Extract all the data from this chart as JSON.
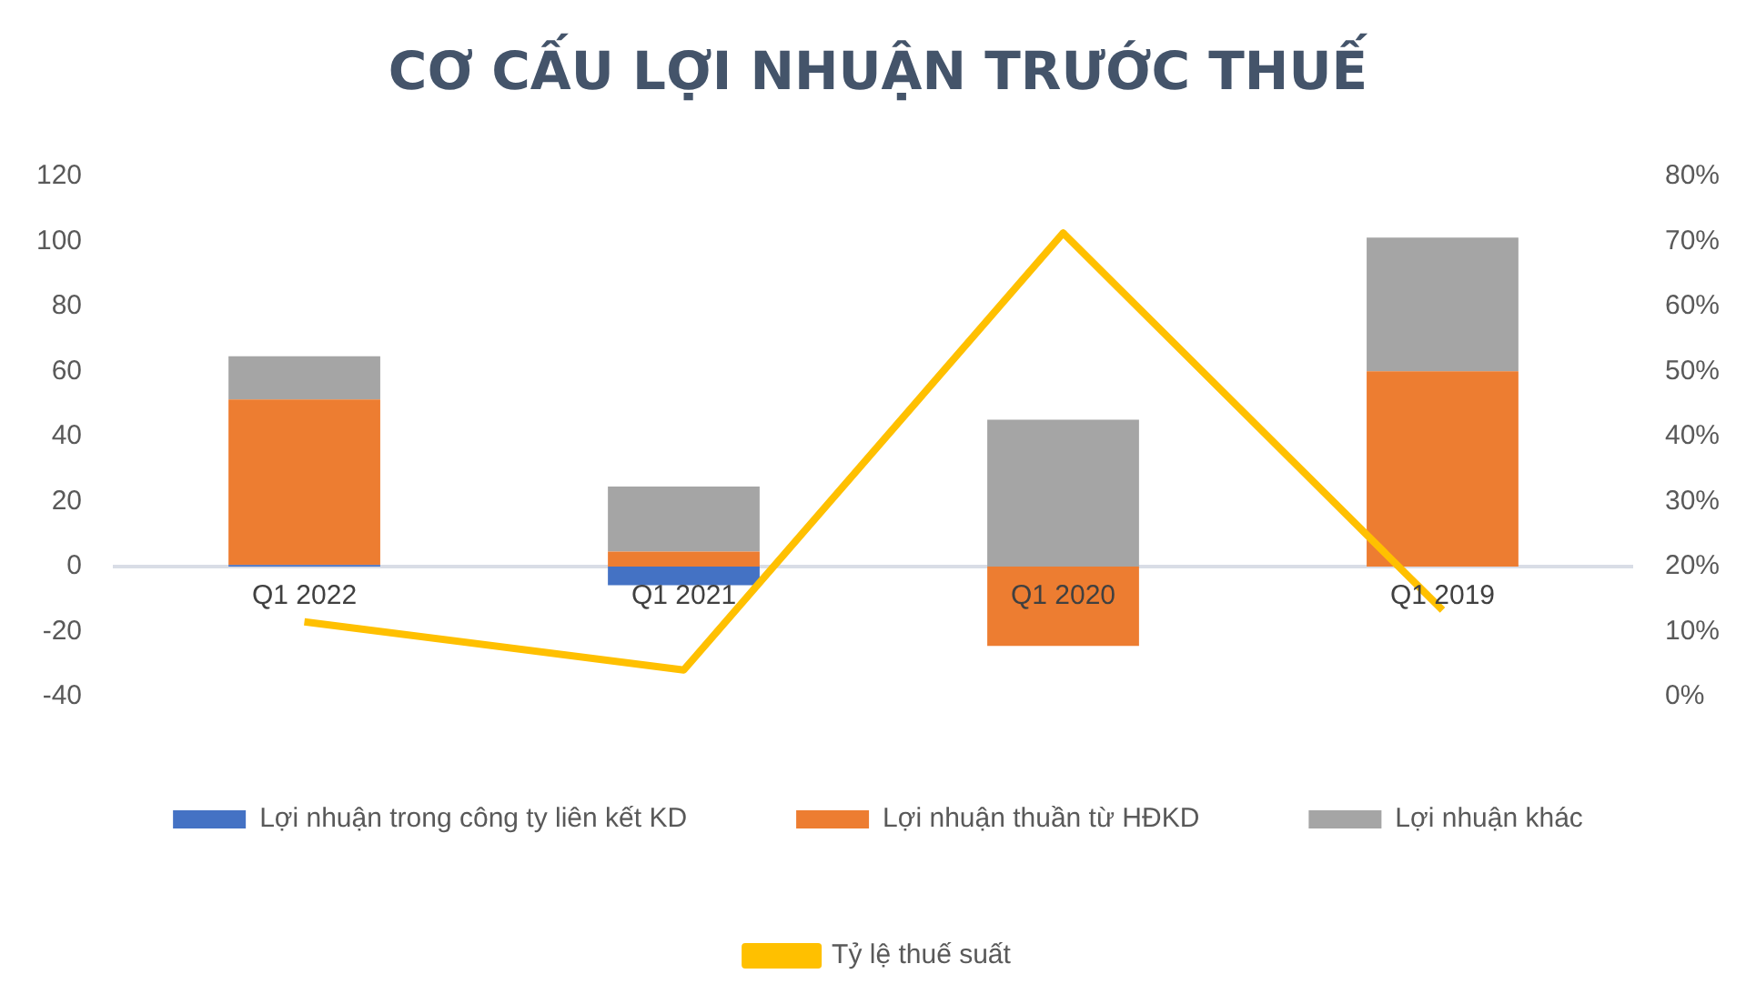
{
  "chart_data": {
    "type": "bar",
    "title": "CƠ CẤU LỢI NHUẬN TRƯỚC THUẾ",
    "stacked": true,
    "categories": [
      "Q1 2022",
      "Q1 2021",
      "Q1 2020",
      "Q1 2019"
    ],
    "series": [
      {
        "name": "Lợi nhuận trong công ty liên kết KD",
        "color": "#4472c4",
        "values": [
          0.5,
          -5.7,
          0,
          0
        ]
      },
      {
        "name": "Lợi nhuận thuần từ HĐKD",
        "color": "#ed7d31",
        "values": [
          50.9,
          4.6,
          -24.4,
          60.1
        ]
      },
      {
        "name": "Lợi nhuận khác",
        "color": "#a5a5a5",
        "values": [
          13.3,
          20,
          45.2,
          41.1
        ]
      },
      {
        "name": "Tỷ lệ thuế suất",
        "type": "line",
        "axis": "y2",
        "color": "#ffc000",
        "values": [
          11.5,
          4.1,
          71.3,
          13.3
        ]
      }
    ],
    "ylim": [
      -40,
      120
    ],
    "yticks": [
      -40,
      -20,
      0,
      20,
      40,
      60,
      80,
      100,
      120
    ],
    "y2lim": [
      0,
      80
    ],
    "y2ticks": [
      {
        "value": 0,
        "label": "0%"
      },
      {
        "value": 10,
        "label": "10%"
      },
      {
        "value": 20,
        "label": "20%"
      },
      {
        "value": 30,
        "label": "30%"
      },
      {
        "value": 40,
        "label": "40%"
      },
      {
        "value": 50,
        "label": "50%"
      },
      {
        "value": 60,
        "label": "60%"
      },
      {
        "value": 70,
        "label": "70%"
      },
      {
        "value": 80,
        "label": "80%"
      }
    ],
    "grid": false,
    "legend": "bottom",
    "marker": "none"
  }
}
